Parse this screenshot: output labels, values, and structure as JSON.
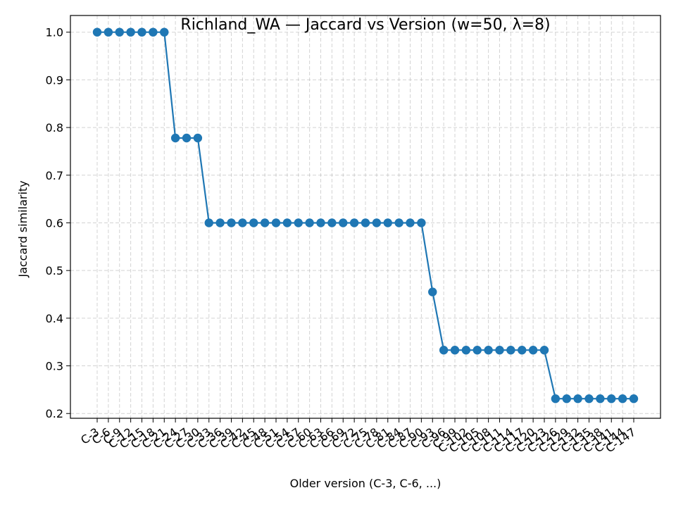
{
  "chart_data": {
    "type": "line",
    "title": "Richland_WA — Jaccard vs Version (w=50, λ=8)",
    "xlabel": "Older version (C-3, C-6, ...)",
    "ylabel": "Jaccard similarity",
    "ylim": [
      0.19,
      1.035
    ],
    "yticks": [
      0.2,
      0.3,
      0.4,
      0.5,
      0.6,
      0.7,
      0.8,
      0.9,
      1.0
    ],
    "ytick_labels": [
      "0.2",
      "0.3",
      "0.4",
      "0.5",
      "0.6",
      "0.7",
      "0.8",
      "0.9",
      "1.0"
    ],
    "grid": true,
    "marker": "circle",
    "color": "#1f77b4",
    "categories": [
      "C-3",
      "C-6",
      "C-9",
      "C-12",
      "C-15",
      "C-18",
      "C-21",
      "C-24",
      "C-27",
      "C-30",
      "C-33",
      "C-36",
      "C-39",
      "C-42",
      "C-45",
      "C-48",
      "C-51",
      "C-54",
      "C-57",
      "C-60",
      "C-63",
      "C-66",
      "C-69",
      "C-72",
      "C-75",
      "C-78",
      "C-81",
      "C-84",
      "C-87",
      "C-90",
      "C-93",
      "C-96",
      "C-99",
      "C-102",
      "C-105",
      "C-108",
      "C-111",
      "C-114",
      "C-117",
      "C-120",
      "C-123",
      "C-126",
      "C-129",
      "C-132",
      "C-135",
      "C-138",
      "C-141",
      "C-144",
      "C-147"
    ],
    "series": [
      {
        "values": [
          1.0,
          1.0,
          1.0,
          1.0,
          1.0,
          1.0,
          1.0,
          0.778,
          0.778,
          0.778,
          0.6,
          0.6,
          0.6,
          0.6,
          0.6,
          0.6,
          0.6,
          0.6,
          0.6,
          0.6,
          0.6,
          0.6,
          0.6,
          0.6,
          0.6,
          0.6,
          0.6,
          0.6,
          0.6,
          0.6,
          0.455,
          0.333,
          0.333,
          0.333,
          0.333,
          0.333,
          0.333,
          0.333,
          0.333,
          0.333,
          0.333,
          0.231,
          0.231,
          0.231,
          0.231,
          0.231,
          0.231,
          0.231,
          0.231
        ]
      }
    ]
  }
}
